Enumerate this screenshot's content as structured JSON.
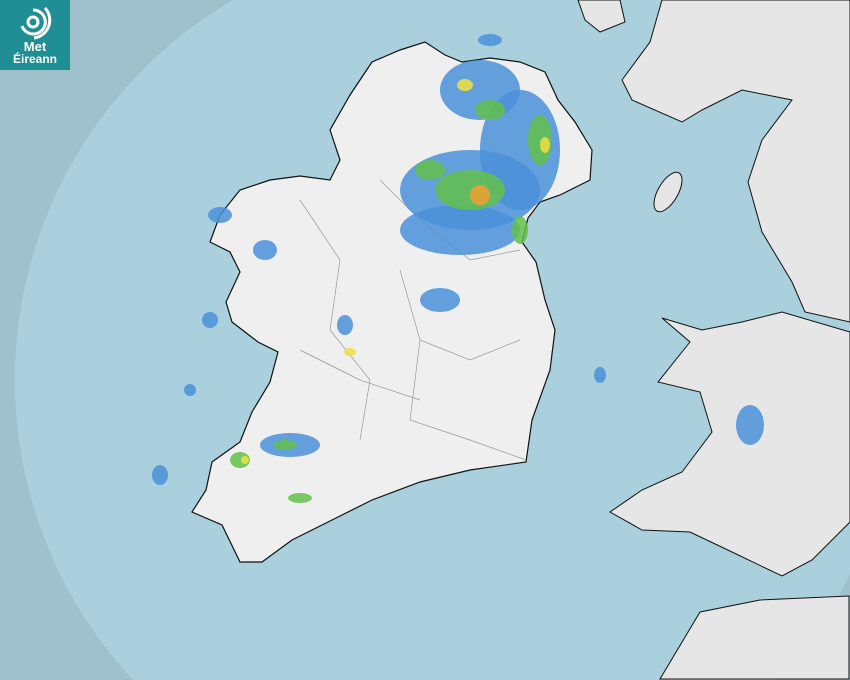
{
  "logo": {
    "line1": "Met",
    "line2": "Éireann",
    "icon": "swirl-logo-icon",
    "color": "#1f8f95"
  },
  "map": {
    "sea_color": "#a9d0dc",
    "outside_radar_color": "#9ec1cb",
    "land_color": "#eeeeee",
    "rain_colors": {
      "light": "#4a90d9",
      "moderate": "#62c04a",
      "heavy": "#f0e040",
      "very_heavy": "#f0a030"
    }
  }
}
